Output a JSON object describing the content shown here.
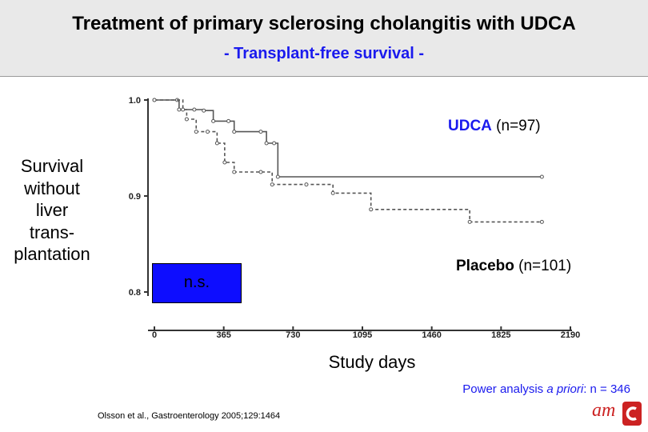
{
  "header": {
    "title": "Treatment of primary sclerosing cholangitis with UDCA",
    "subtitle": "- Transplant-free survival -"
  },
  "chart_data": {
    "type": "line",
    "xlabel": "Study days",
    "ylabel": "Survival without liver trans- plantation",
    "ylabel_lines": [
      "Survival",
      "without",
      "liver",
      "trans-",
      "plantation"
    ],
    "x_ticks": [
      "0",
      "365",
      "730",
      "1095",
      "1460",
      "1825",
      "2190"
    ],
    "y_ticks": [
      "1.0",
      "0.9",
      "0.8"
    ],
    "xlim": [
      0,
      2190
    ],
    "ylim": [
      0.8,
      1.0
    ],
    "grid": false,
    "series": [
      {
        "name": "UDCA (n=97)",
        "style": "solid",
        "color": "#555555",
        "x": [
          0,
          120,
          130,
          210,
          260,
          310,
          390,
          420,
          560,
          590,
          630,
          650,
          2040
        ],
        "y": [
          1.0,
          1.0,
          0.99,
          0.99,
          0.989,
          0.978,
          0.978,
          0.967,
          0.967,
          0.955,
          0.955,
          0.92,
          0.92
        ]
      },
      {
        "name": "Placebo (n=101)",
        "style": "dashed",
        "color": "#555555",
        "x": [
          0,
          150,
          170,
          220,
          280,
          330,
          370,
          420,
          560,
          620,
          800,
          940,
          1140,
          1660,
          2040
        ],
        "y": [
          1.0,
          0.99,
          0.98,
          0.967,
          0.967,
          0.955,
          0.935,
          0.925,
          0.925,
          0.912,
          0.912,
          0.903,
          0.886,
          0.873,
          0.873
        ]
      }
    ],
    "annotations": {
      "udca_bold": "UDCA",
      "udca_n": "(n=97)",
      "placebo_bold": "Placebo",
      "placebo_n": "(n=101)",
      "significance": "n.s."
    }
  },
  "footer": {
    "power_prefix": "Power analysis ",
    "power_italic": "a priori",
    "power_suffix": ": n = 346",
    "citation": "Olsson et al., Gastroenterology 2005;129:1464",
    "logo_text": "am"
  },
  "colors": {
    "header_bg": "#e9e9e9",
    "accent_blue": "#1a1aee",
    "ns_box": "#0d0dff",
    "logo_red": "#cc2222"
  }
}
